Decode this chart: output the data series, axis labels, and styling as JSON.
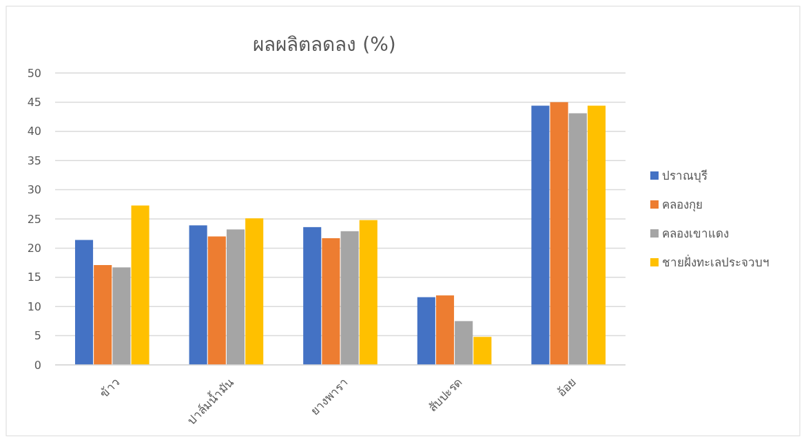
{
  "chart_data": {
    "type": "bar",
    "title": "ผลผลิตลดลง (%)",
    "categories": [
      "ข้าว",
      "ปาล์มน้ำมัน",
      "ยางพารา",
      "สับปะรด",
      "อ้อย"
    ],
    "series": [
      {
        "name": "ปราณบุรี",
        "color": "#4472c4",
        "values": [
          21.4,
          23.9,
          23.6,
          11.6,
          44.4
        ]
      },
      {
        "name": "คลองกุย",
        "color": "#ed7d31",
        "values": [
          17.1,
          22.0,
          21.7,
          11.9,
          45.0
        ]
      },
      {
        "name": "คลองเขาแดง",
        "color": "#a5a5a5",
        "values": [
          16.7,
          23.2,
          22.9,
          7.5,
          43.1
        ]
      },
      {
        "name": "ชายฝั่งทะเลประจวบฯ",
        "color": "#ffc000",
        "values": [
          27.3,
          25.1,
          24.8,
          4.8,
          44.4
        ]
      }
    ],
    "ylim": [
      0,
      50
    ],
    "yticks": [
      0,
      5,
      10,
      15,
      20,
      25,
      30,
      35,
      40,
      45,
      50
    ],
    "grid": "y",
    "legend": "right"
  }
}
